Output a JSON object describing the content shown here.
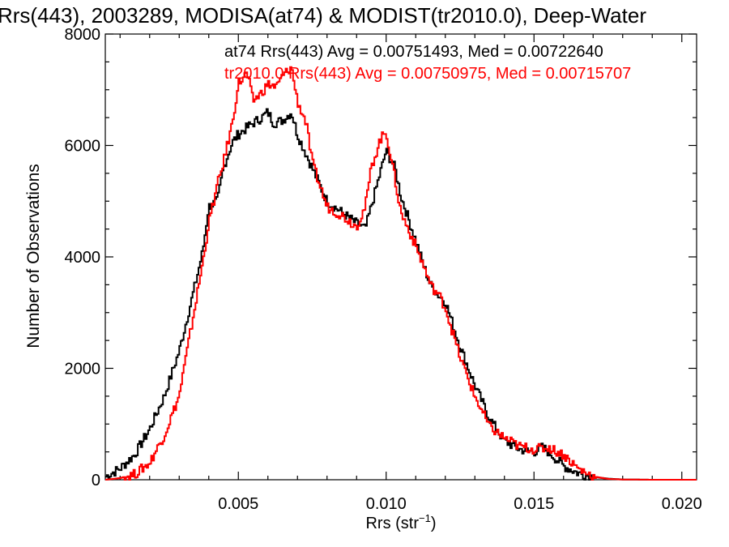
{
  "chart_data": {
    "type": "line",
    "title": "Rrs(443), 2003289, MODISA(at74) & MODIST(tr2010.0), Deep-Water",
    "xlabel": "Rrs (str",
    "xlabel_sup": "−1",
    "xlabel_close": ")",
    "ylabel": "Number of Observations",
    "xlim": [
      0.0005,
      0.0205
    ],
    "ylim": [
      0,
      8000
    ],
    "x_ticks": [
      {
        "value": 0.005,
        "label": "0.005"
      },
      {
        "value": 0.01,
        "label": "0.010"
      },
      {
        "value": 0.015,
        "label": "0.015"
      },
      {
        "value": 0.02,
        "label": "0.020"
      }
    ],
    "y_ticks": [
      {
        "value": 0,
        "label": "0"
      },
      {
        "value": 2000,
        "label": "2000"
      },
      {
        "value": 4000,
        "label": "4000"
      },
      {
        "value": 6000,
        "label": "6000"
      },
      {
        "value": 8000,
        "label": "8000"
      }
    ],
    "grid": false,
    "legend_position": "top-right",
    "series": [
      {
        "name": "at74",
        "color": "#000000",
        "label": "at74 Rrs(443) Avg = 0.00751493, Med = 0.00722640",
        "x": [
          0.0005,
          0.001,
          0.0015,
          0.002,
          0.0025,
          0.003,
          0.0035,
          0.0038,
          0.004,
          0.0043,
          0.0045,
          0.0048,
          0.005,
          0.0055,
          0.0058,
          0.006,
          0.0062,
          0.0065,
          0.0068,
          0.007,
          0.0075,
          0.008,
          0.0085,
          0.009,
          0.0093,
          0.0095,
          0.0098,
          0.01,
          0.0103,
          0.0105,
          0.011,
          0.0113,
          0.0115,
          0.0118,
          0.012,
          0.0125,
          0.013,
          0.0135,
          0.014,
          0.0145,
          0.015,
          0.0153,
          0.0155,
          0.016,
          0.0165,
          0.017,
          0.0175,
          0.018,
          0.019,
          0.0205
        ],
        "y": [
          50,
          200,
          450,
          900,
          1500,
          2300,
          3400,
          4100,
          4900,
          5000,
          5600,
          6050,
          6200,
          6400,
          6500,
          6600,
          6400,
          6450,
          6600,
          6200,
          5600,
          5000,
          4800,
          4600,
          4500,
          4900,
          5500,
          5900,
          5600,
          5100,
          4300,
          3800,
          3500,
          3300,
          3200,
          2400,
          1700,
          1100,
          700,
          550,
          500,
          580,
          500,
          250,
          120,
          50,
          20,
          5,
          0,
          0
        ]
      },
      {
        "name": "tr2010.0",
        "color": "#ff0000",
        "label": "tr2010.0 Rrs(443) Avg = 0.00750975, Med = 0.00715707",
        "x": [
          0.0005,
          0.001,
          0.0015,
          0.002,
          0.0025,
          0.003,
          0.0033,
          0.0035,
          0.0038,
          0.004,
          0.0043,
          0.0045,
          0.0048,
          0.005,
          0.0053,
          0.0055,
          0.0058,
          0.006,
          0.0063,
          0.0065,
          0.0068,
          0.007,
          0.0073,
          0.0075,
          0.008,
          0.0085,
          0.009,
          0.0093,
          0.0095,
          0.0098,
          0.01,
          0.0103,
          0.0105,
          0.011,
          0.0113,
          0.0115,
          0.0118,
          0.012,
          0.0125,
          0.013,
          0.0135,
          0.014,
          0.0145,
          0.015,
          0.0153,
          0.0155,
          0.016,
          0.0165,
          0.017,
          0.0175,
          0.018,
          0.019,
          0.0205
        ],
        "y": [
          0,
          30,
          100,
          300,
          800,
          1500,
          2400,
          3000,
          3900,
          4600,
          5300,
          5700,
          6400,
          7100,
          7300,
          6800,
          6950,
          7100,
          7050,
          7250,
          7400,
          6800,
          6400,
          5700,
          4900,
          4750,
          4550,
          4900,
          5600,
          6100,
          6250,
          5400,
          4800,
          4200,
          3800,
          3500,
          3300,
          3100,
          2200,
          1500,
          950,
          750,
          600,
          550,
          560,
          580,
          450,
          200,
          60,
          15,
          5,
          0,
          0
        ]
      }
    ]
  }
}
